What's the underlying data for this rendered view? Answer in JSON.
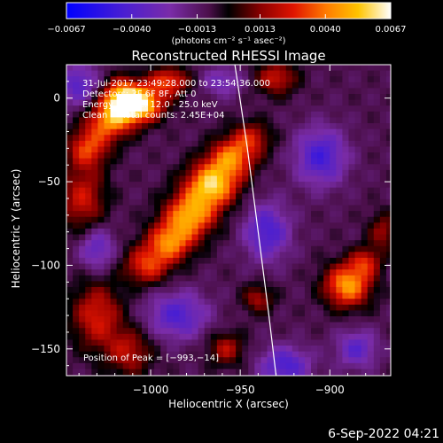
{
  "chart_data": {
    "type": "heatmap",
    "title": "Reconstructed RHESSI Image",
    "xlabel": "Heliocentric X (arcsec)",
    "ylabel": "Heliocentric Y (arcsec)",
    "xlim": [
      -1047,
      -866
    ],
    "ylim": [
      -166,
      20
    ],
    "xticks": [
      -1000,
      -950,
      -900
    ],
    "xtick_labels": [
      "−1000",
      "−950",
      "−900"
    ],
    "yticks": [
      0,
      -50,
      -100,
      -150
    ],
    "ytick_labels": [
      "0",
      "−50",
      "−100",
      "−150"
    ],
    "colorbar": {
      "range": [
        -0.0067,
        0.0067
      ],
      "ticks": [
        -0.0067,
        -0.004,
        -0.0013,
        0.0013,
        0.004,
        0.0067
      ],
      "tick_labels": [
        "−0.0067",
        "−0.0040",
        "−0.0013",
        "0.0013",
        "0.0040",
        "0.0067"
      ],
      "unit_label": "(photons cm⁻² s⁻¹ asec⁻²)"
    },
    "colors": {
      "background": "#000000",
      "text": "#ffffff",
      "colormap": [
        "#0000ff",
        "#4b1fd1",
        "#7a2ca8",
        "#4b0f4a",
        "#000000",
        "#8c0000",
        "#e01400",
        "#ff7a00",
        "#ffc400",
        "#ffffff"
      ]
    },
    "annotations": [
      "31-Jul-2017 23:49:28.000 to 23:54:36.000",
      "Detectors: 3F 6F 8F, Att 0",
      "Energy Range: 12.0 - 25.0 keV",
      "Clean     Total counts: 2.45E+04"
    ],
    "peak_label": "Position of Peak = [−993,−14]",
    "peak": [
      -993,
      -14
    ],
    "sources": [
      {
        "name": "upper-left arc",
        "x": -1006,
        "y": -4,
        "sx": 9,
        "sy": 7,
        "amp": 0.0066
      },
      {
        "name": "upper-left arc",
        "x": -1016,
        "y": 0,
        "sx": 8,
        "sy": 8,
        "amp": 0.0055
      },
      {
        "name": "upper-left arc",
        "x": -1023,
        "y": -14,
        "sx": 9,
        "sy": 8,
        "amp": 0.0046
      },
      {
        "name": "upper-left arc",
        "x": -1035,
        "y": -30,
        "sx": 8,
        "sy": 8,
        "amp": 0.0038
      },
      {
        "name": "upper-left arc",
        "x": -990,
        "y": 10,
        "sx": 8,
        "sy": 6,
        "amp": 0.004
      },
      {
        "name": "central band",
        "x": -955,
        "y": -36,
        "sx": 9,
        "sy": 8,
        "amp": 0.0046
      },
      {
        "name": "central band",
        "x": -966,
        "y": -52,
        "sx": 10,
        "sy": 9,
        "amp": 0.0064
      },
      {
        "name": "central band",
        "x": -978,
        "y": -70,
        "sx": 10,
        "sy": 9,
        "amp": 0.0055
      },
      {
        "name": "central band",
        "x": -989,
        "y": -86,
        "sx": 9,
        "sy": 8,
        "amp": 0.0048
      },
      {
        "name": "central band",
        "x": -1002,
        "y": -100,
        "sx": 9,
        "sy": 8,
        "amp": 0.0038
      },
      {
        "name": "central band",
        "x": -944,
        "y": -24,
        "sx": 8,
        "sy": 7,
        "amp": 0.003
      },
      {
        "name": "left edge",
        "x": -1038,
        "y": -60,
        "sx": 9,
        "sy": 14,
        "amp": 0.0032
      },
      {
        "name": "lower-left",
        "x": -1030,
        "y": -130,
        "sx": 10,
        "sy": 14,
        "amp": 0.0034
      },
      {
        "name": "lower-left",
        "x": -1012,
        "y": -152,
        "sx": 9,
        "sy": 10,
        "amp": 0.0028
      },
      {
        "name": "right blob",
        "x": -890,
        "y": -112,
        "sx": 9,
        "sy": 9,
        "amp": 0.0056
      },
      {
        "name": "right blob",
        "x": -880,
        "y": -98,
        "sx": 6,
        "sy": 6,
        "amp": 0.003
      },
      {
        "name": "top-right",
        "x": -930,
        "y": 12,
        "sx": 8,
        "sy": 7,
        "amp": 0.0032
      },
      {
        "name": "right edge",
        "x": -870,
        "y": -80,
        "sx": 6,
        "sy": 8,
        "amp": 0.0024
      },
      {
        "name": "lower middle",
        "x": -958,
        "y": -150,
        "sx": 7,
        "sy": 7,
        "amp": 0.0028
      },
      {
        "name": "lower middle",
        "x": -940,
        "y": -120,
        "sx": 6,
        "sy": 6,
        "amp": 0.0026
      },
      {
        "name": "negative lobe",
        "x": -1040,
        "y": 8,
        "sx": 8,
        "sy": 9,
        "amp": -0.003
      },
      {
        "name": "negative lobe",
        "x": -1030,
        "y": -90,
        "sx": 7,
        "sy": 9,
        "amp": -0.0028
      },
      {
        "name": "negative lobe",
        "x": -985,
        "y": -130,
        "sx": 12,
        "sy": 10,
        "amp": -0.0032
      },
      {
        "name": "negative lobe",
        "x": -935,
        "y": -80,
        "sx": 9,
        "sy": 12,
        "amp": -0.0034
      },
      {
        "name": "negative lobe",
        "x": -905,
        "y": -35,
        "sx": 10,
        "sy": 12,
        "amp": -0.0036
      },
      {
        "name": "negative lobe",
        "x": -925,
        "y": -160,
        "sx": 10,
        "sy": 8,
        "amp": -0.0034
      },
      {
        "name": "negative lobe",
        "x": -885,
        "y": -150,
        "sx": 8,
        "sy": 8,
        "amp": -0.0028
      },
      {
        "name": "negative lobe",
        "x": -960,
        "y": 10,
        "sx": 8,
        "sy": 6,
        "amp": -0.0022
      }
    ],
    "limb_curve": [
      [
        -953,
        20
      ],
      [
        -946,
        -30
      ],
      [
        -940,
        -80
      ],
      [
        -934,
        -130
      ],
      [
        -930,
        -166
      ]
    ]
  },
  "footer": {
    "date_label": "6-Sep-2022 04:21"
  }
}
